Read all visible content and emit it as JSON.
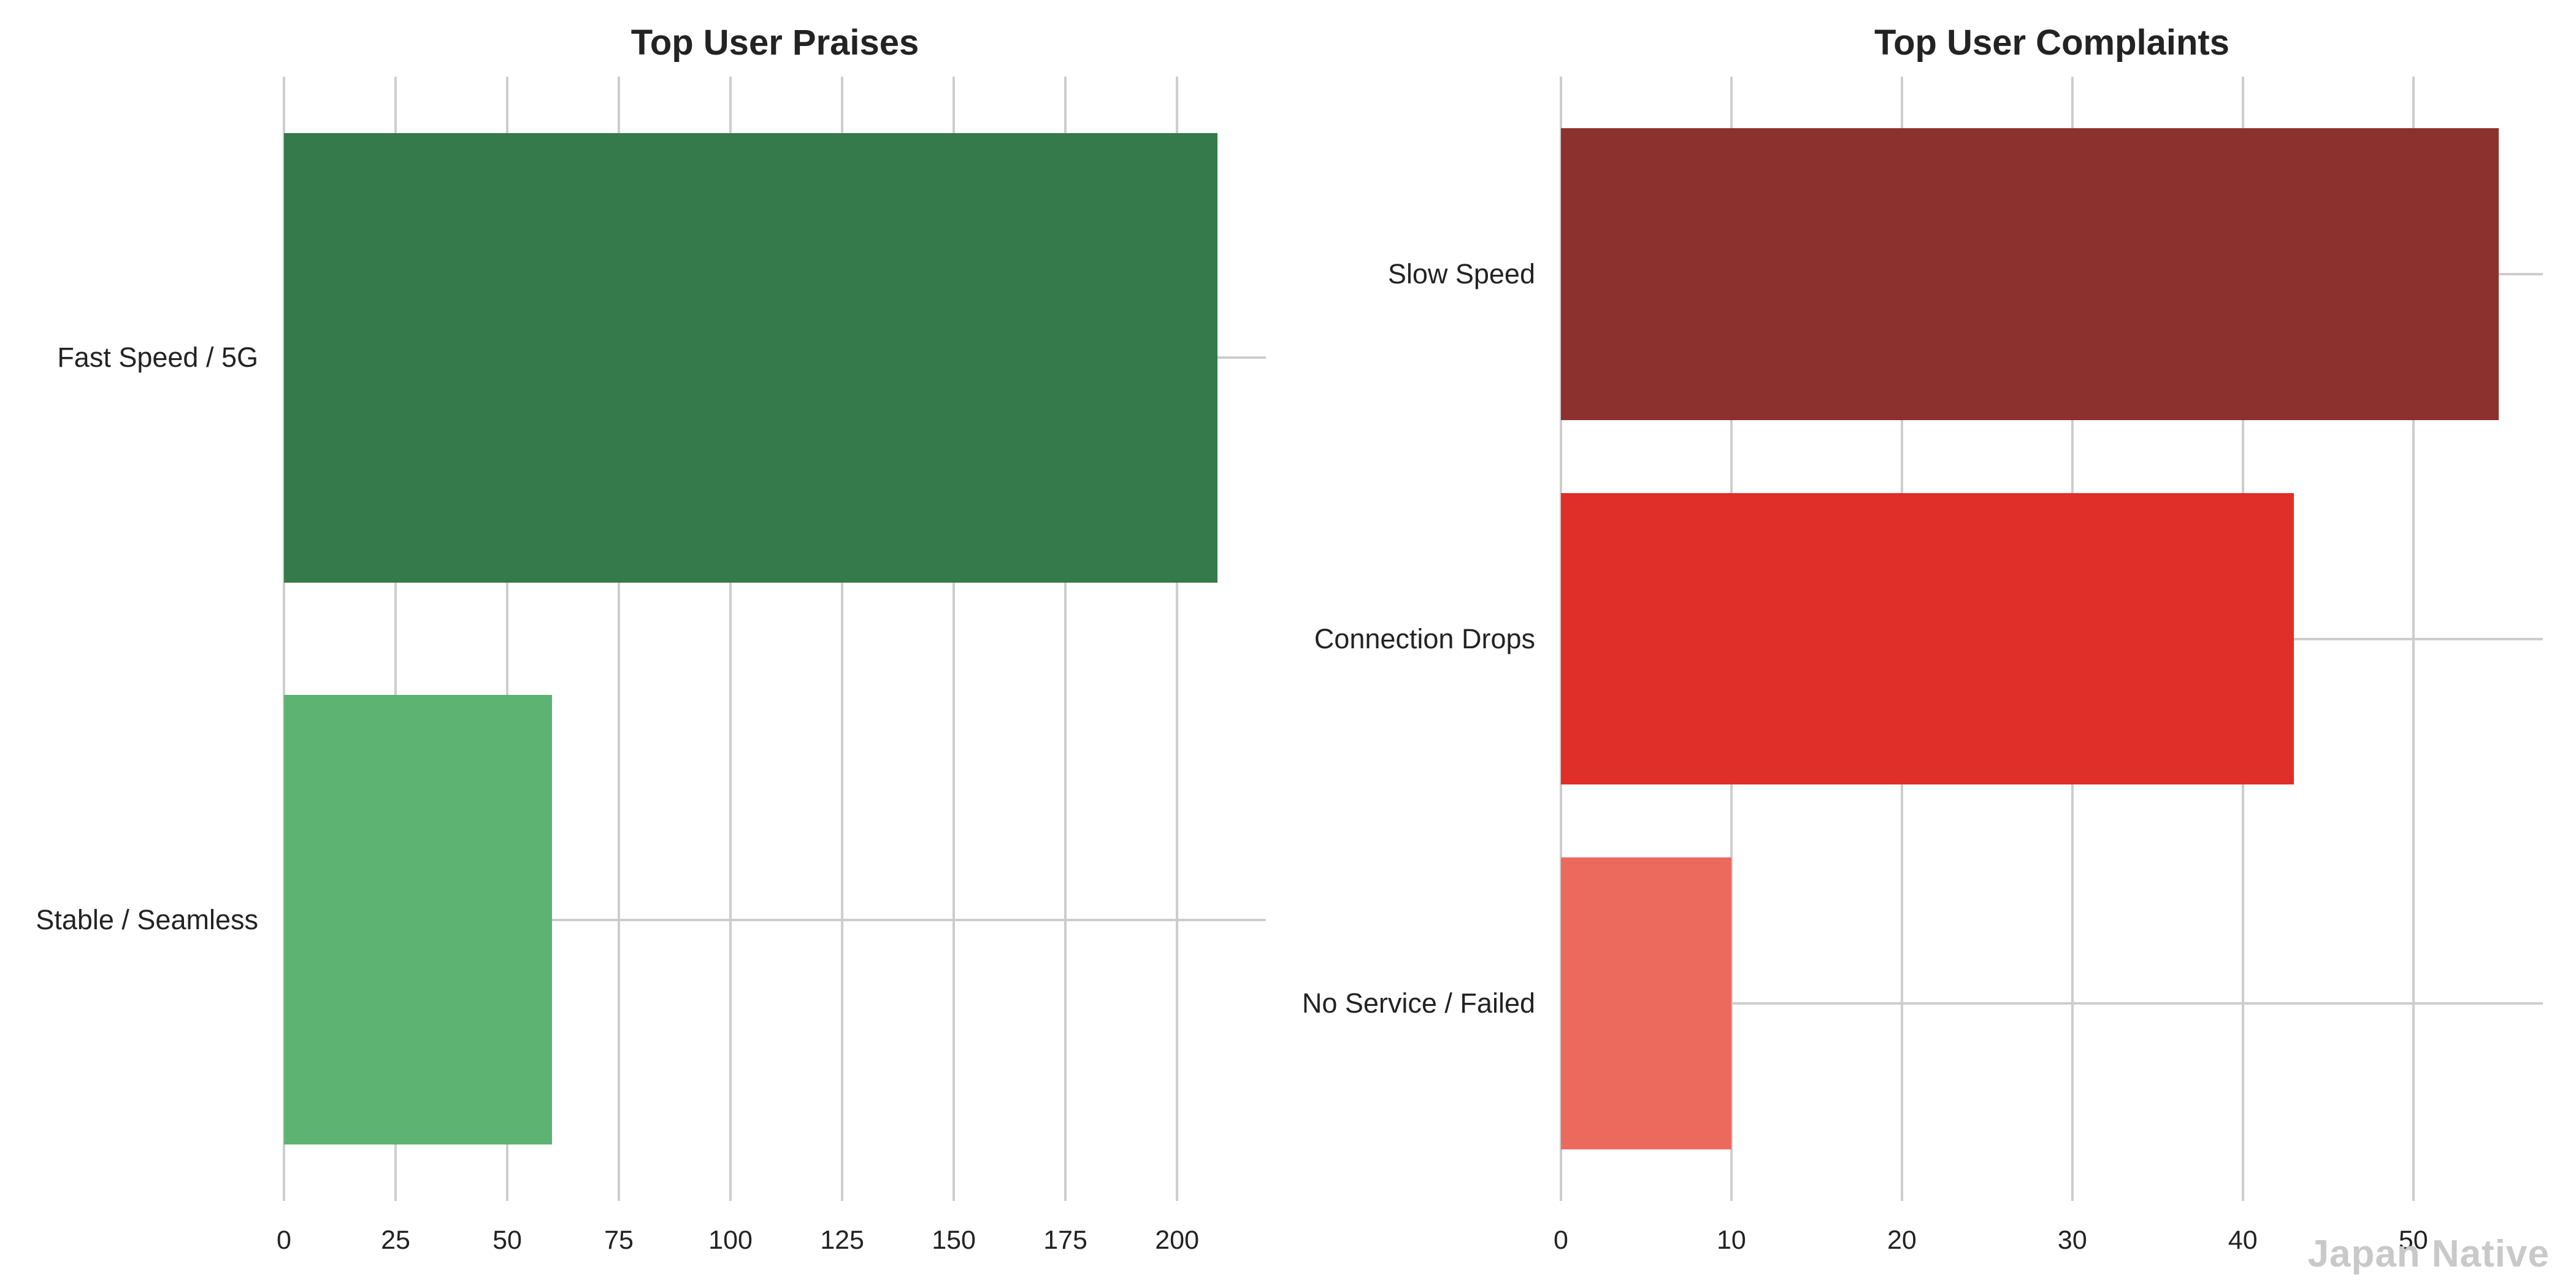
{
  "figure": {
    "background": "#ffffff",
    "watermark": "Japan Native"
  },
  "style": {
    "grid_color": "#cdcdcd",
    "text_color": "#232323",
    "watermark_color": "#c9c9c9"
  },
  "chart_data": [
    {
      "type": "bar",
      "orientation": "horizontal",
      "title": "Top User Praises",
      "categories": [
        "Fast Speed / 5G",
        "Stable / Seamless"
      ],
      "values": [
        209,
        60
      ],
      "bar_colors": [
        "#347a4a",
        "#5db371"
      ],
      "xticks": [
        0,
        25,
        50,
        75,
        100,
        125,
        150,
        175,
        200
      ],
      "xlim": [
        0,
        219.9
      ],
      "xlabel": "",
      "ylabel": "",
      "grid": true,
      "legend_position": "none"
    },
    {
      "type": "bar",
      "orientation": "horizontal",
      "title": "Top User Complaints",
      "categories": [
        "Slow Speed",
        "Connection Drops",
        "No Service / Failed"
      ],
      "values": [
        55,
        43,
        10
      ],
      "bar_colors": [
        "#8d312e",
        "#e02e28",
        "#ec695e"
      ],
      "xticks": [
        0,
        10,
        20,
        30,
        40,
        50
      ],
      "xlim": [
        0,
        57.6
      ],
      "xlabel": "",
      "ylabel": "",
      "grid": true,
      "legend_position": "none"
    }
  ]
}
